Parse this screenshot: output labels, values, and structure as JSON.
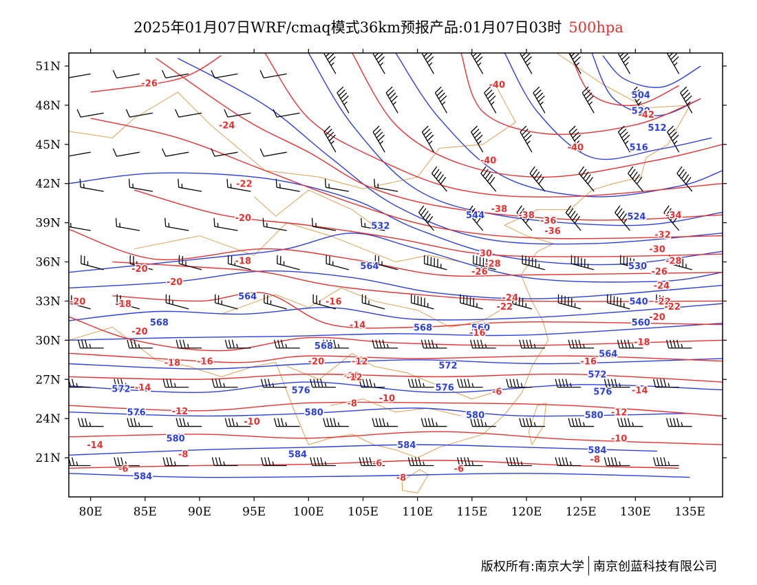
{
  "title": {
    "main": "2025年01月07日WRF/cmaq模式36km预报产品:01月07日03时",
    "level": "500hpa"
  },
  "map": {
    "lat_ticks": [
      "51N",
      "48N",
      "45N",
      "42N",
      "39N",
      "36N",
      "33N",
      "30N",
      "27N",
      "24N",
      "21N"
    ],
    "lon_ticks": [
      "80E",
      "85E",
      "90E",
      "95E",
      "100E",
      "105E",
      "110E",
      "115E",
      "120E",
      "125E",
      "130E",
      "135E"
    ],
    "lat_range": [
      18,
      52
    ],
    "lon_range": [
      78,
      138
    ],
    "colors": {
      "height_contour": "#2a3fe0",
      "temperature_contour": "#e8312f",
      "border": "#e0a050",
      "wind_barb": "#000000"
    },
    "height_labels": [
      "504",
      "520",
      "512",
      "516",
      "560",
      "524",
      "530",
      "532",
      "540",
      "544",
      "560",
      "564",
      "564",
      "568",
      "568",
      "568",
      "564",
      "572",
      "572",
      "572",
      "576",
      "576",
      "576",
      "576",
      "580",
      "580",
      "580",
      "580",
      "584",
      "584",
      "584",
      "584"
    ],
    "temperature_labels": [
      "-26",
      "-24",
      "-40",
      "-42",
      "-40",
      "-40",
      "-22",
      "-38",
      "-36",
      "-20",
      "-18",
      "-20",
      "-20",
      "-18",
      "-16",
      "-14",
      "-16",
      "-20",
      "-22",
      "-20",
      "-18",
      "-16",
      "-12",
      "-10",
      "-14",
      "-12",
      "-10",
      "-8",
      "-8",
      "-6",
      "-6",
      "-6",
      "-8",
      "-10",
      "-12",
      "-14",
      "-16",
      "-18",
      "-20",
      "-22",
      "-24",
      "-26",
      "-28",
      "-30",
      "-32",
      "-34",
      "-36",
      "-38",
      "-30",
      "-28",
      "-26",
      "-24",
      "-22",
      "-20",
      "-12",
      "-10",
      "-8",
      "-6",
      "-14"
    ]
  },
  "footer": {
    "left": "版权所有:南京大学",
    "right": "南京创蓝科技有限公司"
  }
}
